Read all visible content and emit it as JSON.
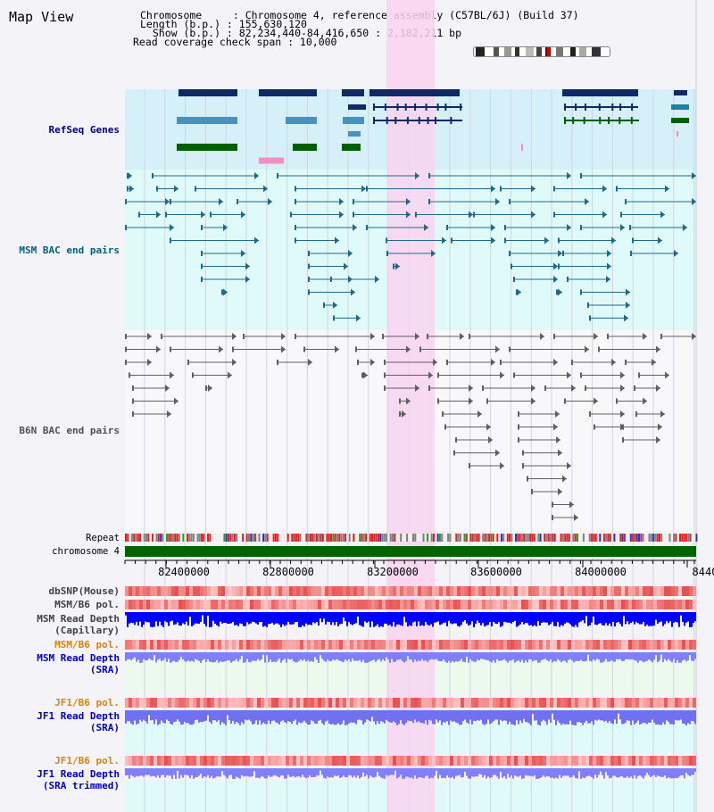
{
  "page": {
    "title": "Map View"
  },
  "info": {
    "line1": "Chromosome     : Chromosome 4, reference assembly (C57BL/6J) (Build 37)",
    "line2": "Length (b.p.) : 155,630,120",
    "line3": "  Show (b.p.) : 82,234,440-84,416,650 : 2,182,211 bp",
    "line4": "Read coverage check span : 10,000"
  },
  "tracks": {
    "refseq": "RefSeq Genes",
    "msm_bac": "MSM BAC end pairs",
    "b6n_bac": "B6N BAC end pairs",
    "repeat": "Repeat",
    "chromosome": "chromosome 4",
    "dbsnp": "dbSNP(Mouse)",
    "msm_b6_pol_1": "MSM/B6 pol.",
    "msm_depth_cap": "MSM Read Depth\n(Capillary)",
    "msm_b6_pol_2": "MSM/B6 pol.",
    "msm_depth_sra": "MSM Read Depth\n(SRA)",
    "jf1_b6_pol_1": "JF1/B6 pol.",
    "jf1_depth_sra": "JF1 Read Depth\n(SRA)",
    "jf1_b6_pol_2": "JF1/B6 pol.",
    "jf1_depth_trim": "JF1 Read Depth\n(SRA trimmed)"
  },
  "ruler": {
    "ticks": [
      "82400000",
      "82800000",
      "83200000",
      "83600000",
      "84000000",
      "8440"
    ]
  },
  "colors": {
    "refseq_bg": "#d6f0fa",
    "msm_bg": "#e0fafa",
    "highlight": "#f8d4f0",
    "msm_label": "#006080",
    "refseq_label": "#000080",
    "b6n_label": "#505050",
    "orange_label": "#e08000",
    "blue_label": "#0000c0"
  }
}
